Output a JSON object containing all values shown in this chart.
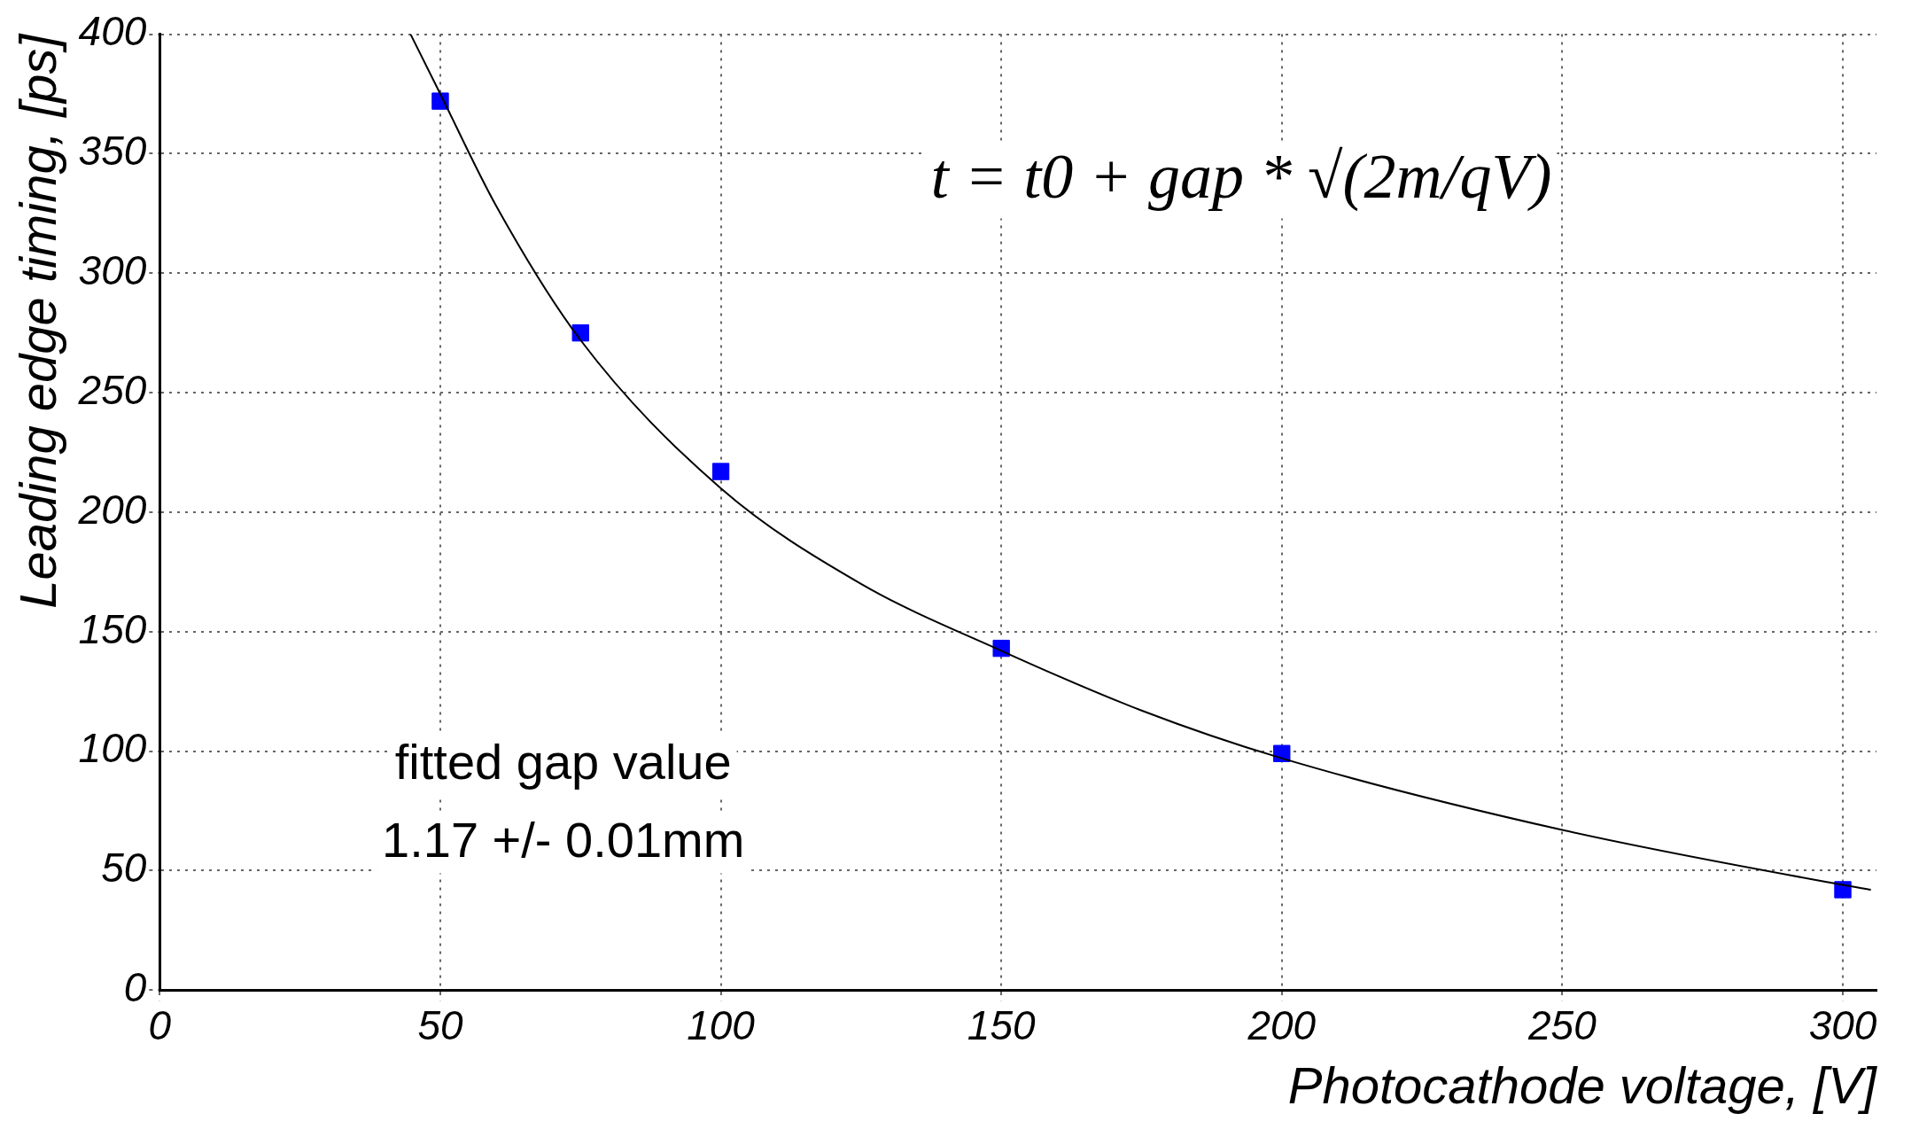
{
  "chart_data": {
    "type": "scatter",
    "xlabel": "Photocathode voltage, [V]",
    "ylabel": "Leading edge timing, [ps]",
    "xlim": [
      0,
      306
    ],
    "xticks": [
      0,
      50,
      100,
      150,
      200,
      250,
      300
    ],
    "ylim": [
      0,
      400
    ],
    "yticks": [
      0,
      50,
      100,
      150,
      200,
      250,
      300,
      350,
      400
    ],
    "grid": true,
    "legend": false,
    "marker": "square",
    "series": [
      {
        "color": "#0000ff",
        "x": [
          50,
          75,
          100,
          150,
          200,
          300
        ],
        "values": [
          372,
          275,
          217,
          143,
          99,
          42
        ]
      },
      {
        "type": "line",
        "color": "#000000",
        "marker": "none",
        "x": [
          44.7,
          50,
          60,
          75,
          100,
          125,
          150,
          175,
          200,
          250,
          300,
          305
        ],
        "values": [
          400,
          375,
          328,
          272,
          210,
          170,
          142,
          117,
          97,
          67,
          44,
          42
        ]
      }
    ],
    "annotations": [
      "t = t0 + gap * √(2m/qV)",
      "fitted gap value\n1.17 +/- 0.01mm"
    ]
  }
}
